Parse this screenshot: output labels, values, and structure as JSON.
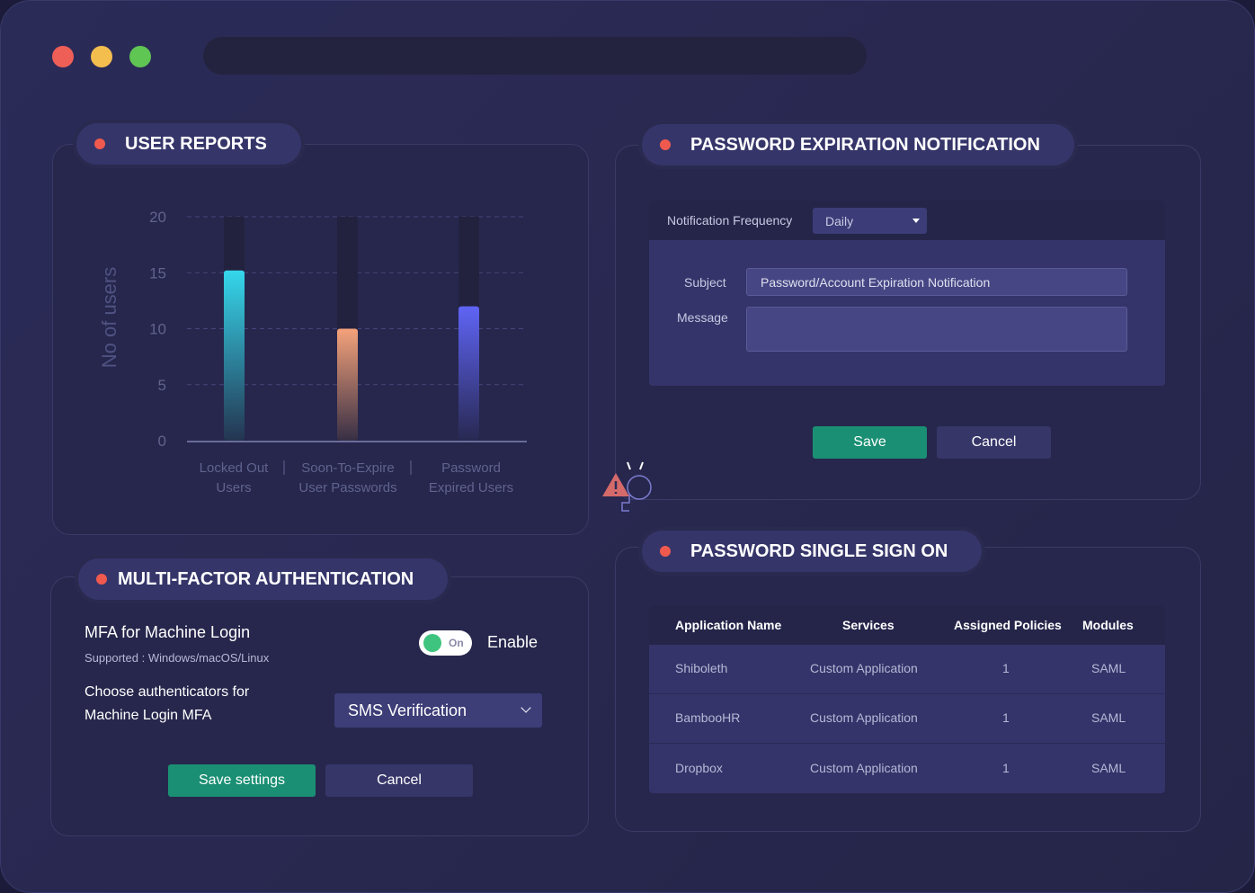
{
  "window": {
    "colors": {
      "close": "#ee5f57",
      "min": "#f4be4f",
      "max": "#5fc553"
    }
  },
  "user_reports": {
    "title": "USER REPORTS"
  },
  "chart_data": {
    "type": "bar",
    "categories": [
      "Locked Out Users",
      "Soon-To-Expire User Passwords",
      "Password Expired Users"
    ],
    "category_lines": [
      [
        "Locked Out",
        "Users"
      ],
      [
        "Soon-To-Expire",
        "User Passwords"
      ],
      [
        "Password",
        "Expired Users"
      ]
    ],
    "values": [
      15.2,
      10,
      12
    ],
    "ylabel": "No of users",
    "ylim": [
      0,
      20
    ],
    "yticks": [
      "0",
      "5",
      "10",
      "15",
      "20"
    ],
    "grid": true,
    "colors": [
      "#35d7ec",
      "#f5a27a",
      "#5f64f5"
    ]
  },
  "password_expiration": {
    "title": "PASSWORD  EXPIRATION NOTIFICATION",
    "frequency_label": "Notification Frequency",
    "frequency_value": "Daily",
    "subject_label": "Subject",
    "subject_value": "Password/Account Expiration Notification",
    "message_label": "Message",
    "message_value": "",
    "save": "Save",
    "cancel": "Cancel"
  },
  "mfa": {
    "title": "MULTI-FACTOR AUTHENTICATION",
    "machine_login": "MFA for Machine Login",
    "supported": "Supported : Windows/macOS/Linux",
    "toggle_state": "On",
    "enable": "Enable",
    "choose_line1": "Choose authenticators for",
    "choose_line2": "Machine Login MFA",
    "authenticator": "SMS Verification",
    "save": "Save settings",
    "cancel": "Cancel"
  },
  "sso": {
    "title": "PASSWORD SINGLE SIGN ON",
    "columns": [
      "Application Name",
      "Services",
      "Assigned Policies",
      "Modules"
    ],
    "rows": [
      [
        "Shiboleth",
        "Custom Application",
        "1",
        "SAML"
      ],
      [
        "BambooHR",
        "Custom Application",
        "1",
        "SAML"
      ],
      [
        "Dropbox",
        "Custom Application",
        "1",
        "SAML"
      ]
    ]
  }
}
